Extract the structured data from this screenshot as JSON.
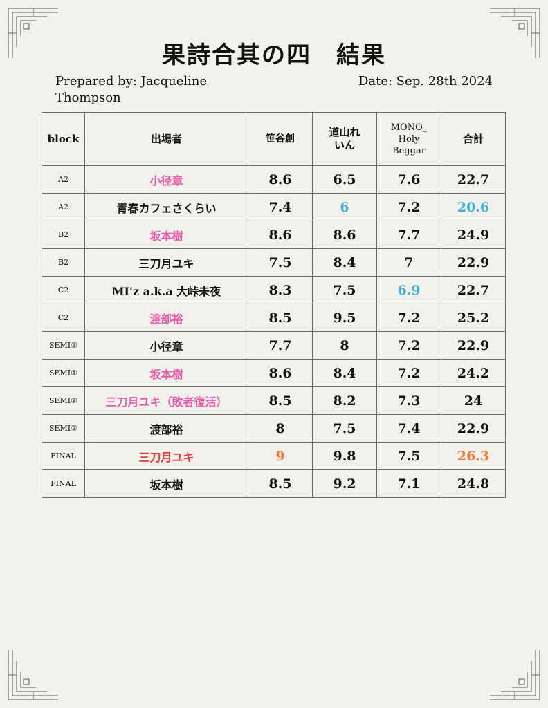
{
  "title": "果詩合其の四　結果",
  "prepared_by": "Prepared by: Jacqueline Thompson",
  "date": "Date: Sep. 28th 2024",
  "columns": [
    "block",
    "出場者",
    "笹谷創",
    "道山れいん",
    "MONO_ Holy Beggar",
    "合計"
  ],
  "colors": {
    "pink": "#e85aa8",
    "blue": "#3fb3d9",
    "orange": "#ef7a3a",
    "red": "#e63a3a",
    "text": "#111111",
    "background": "#f3f1ec"
  },
  "rows": [
    {
      "block": "A2",
      "name": "小径章",
      "s1": "8.6",
      "s2": "6.5",
      "s3": "7.6",
      "total": "22.7"
    },
    {
      "block": "A2",
      "name": "青春カフェさくらい",
      "s1": "7.4",
      "s2": "6",
      "s3": "7.2",
      "total": "20.6"
    },
    {
      "block": "B2",
      "name": "坂本樹",
      "s1": "8.6",
      "s2": "8.6",
      "s3": "7.7",
      "total": "24.9"
    },
    {
      "block": "B2",
      "name": "三刀月ユキ",
      "s1": "7.5",
      "s2": "8.4",
      "s3": "7",
      "total": "22.9"
    },
    {
      "block": "C2",
      "name": "MI'z a.k.a 大峠未夜",
      "s1": "8.3",
      "s2": "7.5",
      "s3": "6.9",
      "total": "22.7"
    },
    {
      "block": "C2",
      "name": "渡部裕",
      "s1": "8.5",
      "s2": "9.5",
      "s3": "7.2",
      "total": "25.2"
    },
    {
      "block": "SEMI①",
      "name": "小径章",
      "s1": "7.7",
      "s2": "8",
      "s3": "7.2",
      "total": "22.9"
    },
    {
      "block": "SEMI①",
      "name": "坂本樹",
      "s1": "8.6",
      "s2": "8.4",
      "s3": "7.2",
      "total": "24.2"
    },
    {
      "block": "SEMI②",
      "name": "三刀月ユキ（敗者復活）",
      "s1": "8.5",
      "s2": "8.2",
      "s3": "7.3",
      "total": "24"
    },
    {
      "block": "SEMI②",
      "name": "渡部裕",
      "s1": "8",
      "s2": "7.5",
      "s3": "7.4",
      "total": "22.9"
    },
    {
      "block": "FINAL",
      "name": "三刀月ユキ",
      "s1": "9",
      "s2": "9.8",
      "s3": "7.5",
      "total": "26.3"
    },
    {
      "block": "FINAL",
      "name": "坂本樹",
      "s1": "8.5",
      "s2": "9.2",
      "s3": "7.1",
      "total": "24.8"
    }
  ]
}
